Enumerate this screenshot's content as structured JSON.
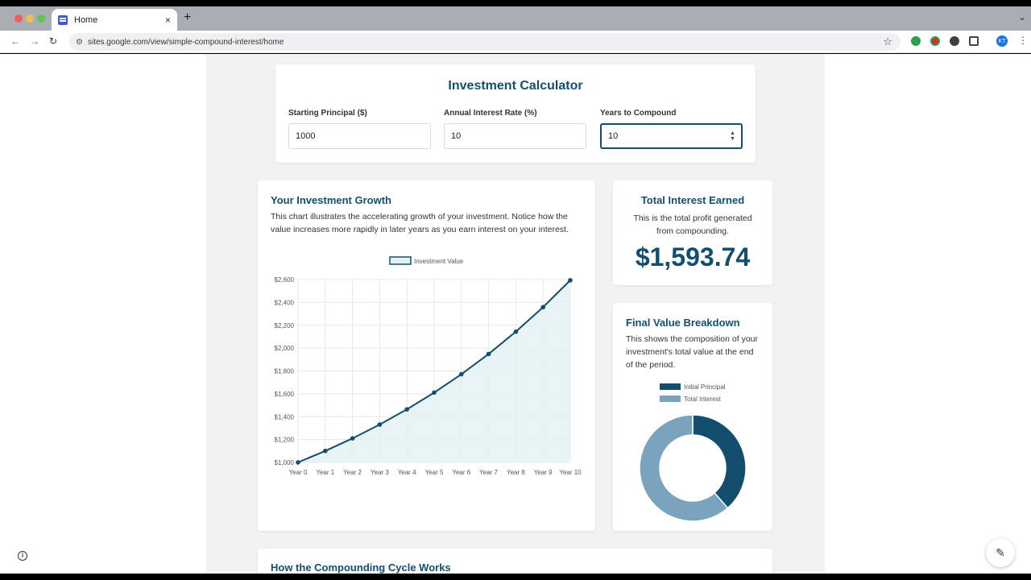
{
  "browser": {
    "tab_title": "Home",
    "tab_close": "×",
    "new_tab": "+",
    "url": "sites.google.com/view/simple-compound-interest/home",
    "avatar_initials": "KT"
  },
  "calculator": {
    "title": "Investment Calculator",
    "principal_label": "Starting Principal ($)",
    "principal_value": "1000",
    "rate_label": "Annual Interest Rate (%)",
    "rate_value": "10",
    "years_label": "Years to Compound",
    "years_value": "10"
  },
  "growth": {
    "title": "Your Investment Growth",
    "description": "This chart illustrates the accelerating growth of your investment. Notice how the value increases more rapidly in later years as you earn interest on your interest."
  },
  "interest": {
    "title": "Total Interest Earned",
    "description": "This is the total profit generated from compounding.",
    "value": "$1,593.74"
  },
  "breakdown": {
    "title": "Final Value Breakdown",
    "description": "This shows the composition of your investment's total value at the end of the period."
  },
  "cycle": {
    "title": "How the Compounding Cycle Works"
  },
  "chart_data": [
    {
      "type": "area",
      "title": "",
      "legend": [
        "Investment Value"
      ],
      "legend_placement": "top",
      "x": [
        "Year 0",
        "Year 1",
        "Year 2",
        "Year 3",
        "Year 4",
        "Year 5",
        "Year 6",
        "Year 7",
        "Year 8",
        "Year 9",
        "Year 10"
      ],
      "series": [
        {
          "name": "Investment Value",
          "values": [
            1000,
            1100,
            1210,
            1331,
            1464.1,
            1610.51,
            1771.56,
            1948.72,
            2143.59,
            2357.95,
            2593.74
          ]
        }
      ],
      "yticks": [
        "$1,000",
        "$1,200",
        "$1,400",
        "$1,600",
        "$1,800",
        "$2,000",
        "$2,200",
        "$2,400",
        "$2,600"
      ],
      "ylim": [
        1000,
        2600
      ],
      "grid": true,
      "colors": {
        "line": "#134e6f",
        "fill": "#e4f1f3"
      }
    },
    {
      "type": "pie",
      "title": "",
      "legend_placement": "top",
      "labels": [
        "Initial Principal",
        "Total Interest"
      ],
      "values": [
        1000,
        1593.74
      ],
      "colors": [
        "#134e6f",
        "#7aa3bd"
      ]
    }
  ],
  "colors": {
    "accent": "#134e6f",
    "band": "#f0f2f4"
  }
}
